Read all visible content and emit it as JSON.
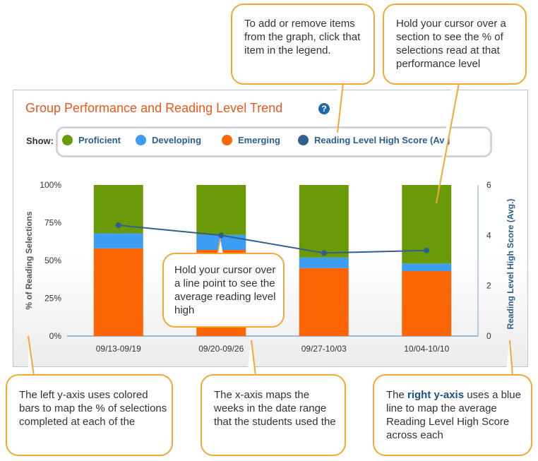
{
  "chart_title": "Group Performance and Reading Level Trend",
  "help_icon_label": "?",
  "legend": {
    "show_label": "Show:",
    "items": [
      {
        "label": "Proficient",
        "color": "#6a9a08"
      },
      {
        "label": "Developing",
        "color": "#3c9df2"
      },
      {
        "label": "Emerging",
        "color": "#fc6506"
      },
      {
        "label": "Reading Level High Score (Avg",
        "color": "#2f5f8f"
      }
    ]
  },
  "chart_data": {
    "type": "bar",
    "stacked": true,
    "categories": [
      "09/13-09/19",
      "09/20-09/26",
      "09/27-10/03",
      "10/04-10/10"
    ],
    "series": [
      {
        "name": "Emerging",
        "values": [
          58,
          57,
          45,
          43
        ],
        "color": "#fc6506"
      },
      {
        "name": "Developing",
        "values": [
          10,
          10,
          7,
          5
        ],
        "color": "#3c9df2"
      },
      {
        "name": "Proficient",
        "values": [
          32,
          33,
          48,
          52
        ],
        "color": "#6a9a08"
      }
    ],
    "line_series": {
      "name": "Reading Level High Score (Avg.)",
      "values": [
        4.4,
        4.0,
        3.3,
        3.4
      ],
      "color": "#2f5f8f"
    },
    "ylabel": "% of Reading Selections",
    "y2label": "Reading Level High Score (Avg.)",
    "ylim": [
      0,
      100
    ],
    "y2lim": [
      0,
      6
    ],
    "yticks": [
      "0%",
      "25%",
      "50%",
      "75%",
      "100%"
    ],
    "y2ticks": [
      "0",
      "2",
      "4",
      "6"
    ],
    "grid": false,
    "legend_position": "top"
  },
  "callouts": {
    "legend_tip": "To add or remove items from the graph, click that item in the legend.",
    "section_tip": "Hold your cursor over a section to see the % of selections read at that performance level",
    "line_point_tip": "Hold your cursor over a line point to see the average reading level high",
    "left_axis_tip": "The left y-axis uses colored bars to map the % of selections completed at each of the",
    "x_axis_tip": "The x-axis maps the weeks in the date range that the students used the",
    "right_axis_prefix": "The ",
    "right_axis_accent": "right y-axis",
    "right_axis_rest": " uses a blue line to map the average Reading Level High Score across each"
  }
}
